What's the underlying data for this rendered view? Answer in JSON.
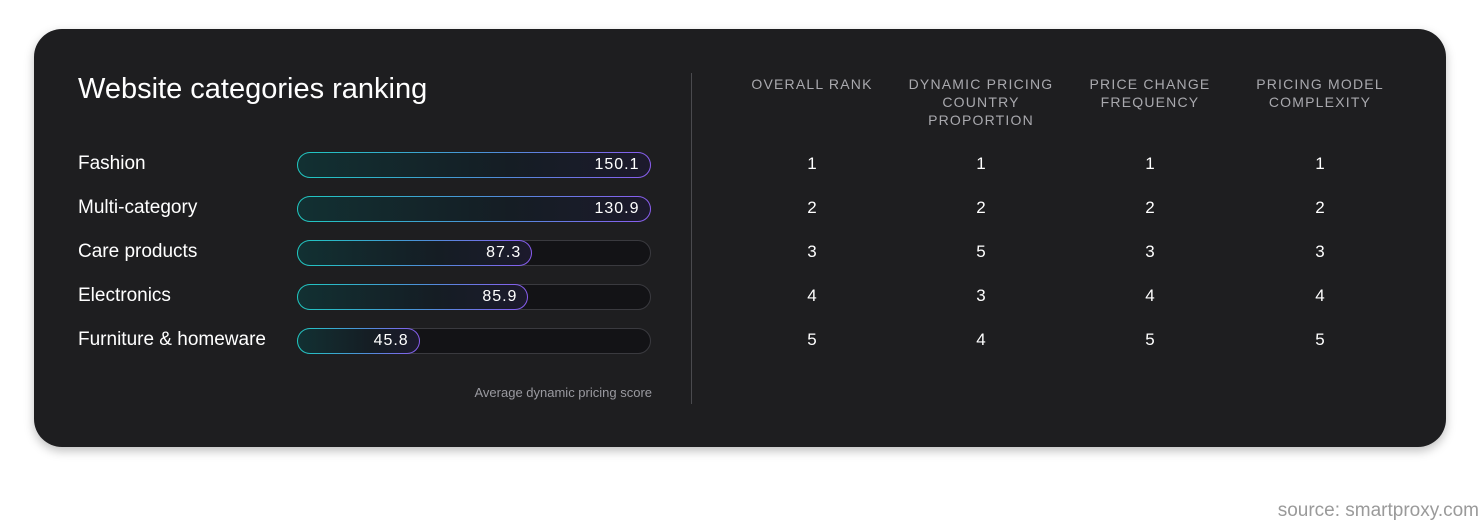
{
  "title": "Website categories ranking",
  "axis_caption": "Average dynamic pricing score",
  "columns": [
    "OVERALL RANK",
    "DYNAMIC PRICING COUNTRY PROPORTION",
    "PRICE CHANGE FREQUENCY",
    "PRICING MODEL COMPLEXITY"
  ],
  "source": "source: smartproxy.com",
  "colors": {
    "background": "#1e1e20",
    "bar_border_start": "#1ec8c0",
    "bar_border_end": "#8a5cf0",
    "track": "#131316",
    "text": "#ffffff",
    "muted": "#a9a9ae"
  },
  "chart_data": {
    "type": "bar",
    "orientation": "horizontal",
    "title": "Website categories ranking",
    "xlabel": "Average dynamic pricing score",
    "categories": [
      "Fashion",
      "Multi-category",
      "Care products",
      "Electronics",
      "Furniture & homeware"
    ],
    "values": [
      150.1,
      130.9,
      87.3,
      85.9,
      45.8
    ],
    "value_labels": [
      "150.1",
      "130.9",
      "87.3",
      "85.9",
      "45.8"
    ],
    "xlim": [
      0,
      130.9
    ],
    "grid": false
  },
  "table": {
    "rows": [
      {
        "category": "Fashion",
        "ranks": [
          "1",
          "1",
          "1",
          "1"
        ]
      },
      {
        "category": "Multi-category",
        "ranks": [
          "2",
          "2",
          "2",
          "2"
        ]
      },
      {
        "category": "Care products",
        "ranks": [
          "3",
          "5",
          "3",
          "3"
        ]
      },
      {
        "category": "Electronics",
        "ranks": [
          "4",
          "3",
          "4",
          "4"
        ]
      },
      {
        "category": "Furniture & homeware",
        "ranks": [
          "5",
          "4",
          "5",
          "5"
        ]
      }
    ]
  }
}
